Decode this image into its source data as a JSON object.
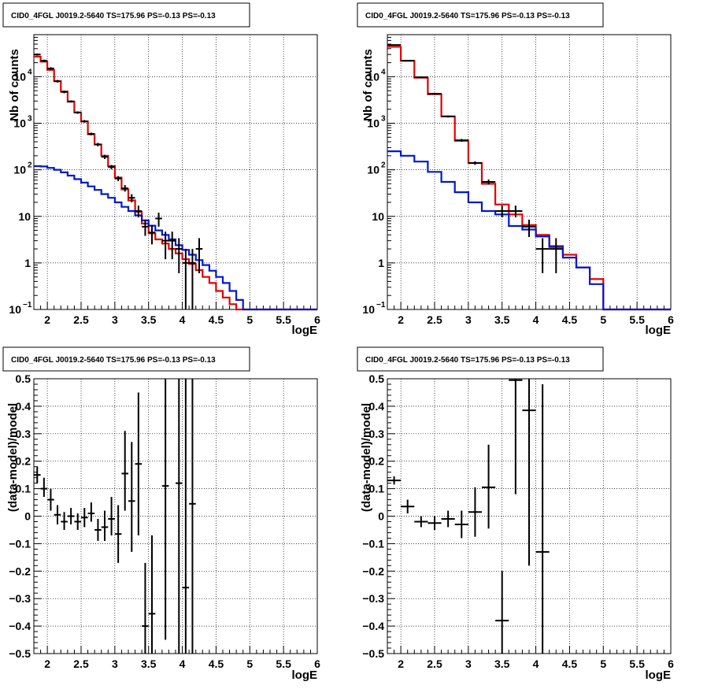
{
  "chart_data": [
    {
      "type": "line",
      "title": "CID0_4FGL J0019.2-5640 TS=175.96 PS=-0.13 PS=-0.13",
      "xlabel": "logE",
      "ylabel": "Nb of counts",
      "xlim": [
        1.8,
        6.0
      ],
      "ylim": [
        0.1,
        80000
      ],
      "yscale": "log",
      "grid": true,
      "xticks": [
        "2",
        "2.5",
        "3",
        "3.5",
        "4",
        "4.5",
        "5",
        "5.5",
        "6"
      ],
      "yticks": [
        {
          "v": 0.1,
          "label": "10",
          "exp": "−1"
        },
        {
          "v": 1,
          "label": "1",
          "exp": ""
        },
        {
          "v": 10,
          "label": "10",
          "exp": ""
        },
        {
          "v": 100,
          "label": "10",
          "exp": "2"
        },
        {
          "v": 1000,
          "label": "10",
          "exp": "3"
        },
        {
          "v": 10000,
          "label": "10",
          "exp": "4"
        }
      ],
      "bin_edges": [
        1.8,
        1.9,
        2.0,
        2.1,
        2.2,
        2.3,
        2.4,
        2.5,
        2.6,
        2.7,
        2.8,
        2.9,
        3.0,
        3.1,
        3.2,
        3.3,
        3.4,
        3.5,
        3.6,
        3.7,
        3.8,
        3.9,
        4.0,
        4.1,
        4.2,
        4.3,
        4.4,
        4.5,
        4.6,
        4.7,
        4.8,
        4.9,
        5.0,
        5.1,
        5.2,
        5.3,
        5.4,
        5.5,
        5.6,
        5.7,
        5.8,
        5.9,
        6.0
      ],
      "series": [
        {
          "color": "#e00000",
          "style": "step",
          "values": [
            27000,
            21000,
            14000,
            8000,
            4800,
            2900,
            1700,
            1100,
            580,
            350,
            200,
            120,
            68,
            38,
            22,
            12.5,
            7,
            4.3,
            3.2,
            2.6,
            2.0,
            1.6,
            1.2,
            0.95,
            0.7,
            0.5,
            0.37,
            0.25,
            0.18,
            0.13,
            0.1,
            0.1,
            0.1,
            0.1,
            0.1,
            0.1,
            0.1,
            0.1,
            0.1,
            0.1,
            0.1,
            0.1
          ]
        },
        {
          "color": "#0018d0",
          "style": "step",
          "values": [
            120,
            118,
            110,
            100,
            88,
            75,
            63,
            53,
            44,
            37,
            30,
            25,
            20,
            16,
            13,
            10.5,
            8.2,
            6.3,
            5,
            4,
            3.2,
            2.4,
            1.9,
            1.5,
            1.15,
            0.9,
            0.68,
            0.5,
            0.37,
            0.25,
            0.16,
            0.1,
            0.1,
            0.1,
            0.1,
            0.1,
            0.1,
            0.1,
            0.1,
            0.1,
            0.1,
            0.1
          ]
        },
        {
          "color": "#000000",
          "style": "errorbar",
          "points": [
            {
              "x": 1.85,
              "y": 30000,
              "lo": 28500,
              "hi": 31500
            },
            {
              "x": 1.95,
              "y": 22000,
              "lo": 20800,
              "hi": 23200
            },
            {
              "x": 2.05,
              "y": 15000,
              "lo": 14000,
              "hi": 16000
            },
            {
              "x": 2.15,
              "y": 8000,
              "lo": 7500,
              "hi": 8500
            },
            {
              "x": 2.25,
              "y": 4700,
              "lo": 4400,
              "hi": 5000
            },
            {
              "x": 2.35,
              "y": 2950,
              "lo": 2800,
              "hi": 3100
            },
            {
              "x": 2.45,
              "y": 1700,
              "lo": 1600,
              "hi": 1800
            },
            {
              "x": 2.55,
              "y": 1100,
              "lo": 1030,
              "hi": 1170
            },
            {
              "x": 2.65,
              "y": 590,
              "lo": 550,
              "hi": 630
            },
            {
              "x": 2.75,
              "y": 350,
              "lo": 320,
              "hi": 380
            },
            {
              "x": 2.85,
              "y": 190,
              "lo": 170,
              "hi": 210
            },
            {
              "x": 2.95,
              "y": 115,
              "lo": 103,
              "hi": 127
            },
            {
              "x": 3.05,
              "y": 65,
              "lo": 57,
              "hi": 73
            },
            {
              "x": 3.15,
              "y": 40,
              "lo": 34,
              "hi": 47
            },
            {
              "x": 3.25,
              "y": 25,
              "lo": 20,
              "hi": 30
            },
            {
              "x": 3.35,
              "y": 13,
              "lo": 9.5,
              "hi": 17
            },
            {
              "x": 3.45,
              "y": 6,
              "lo": 3.8,
              "hi": 8.5
            },
            {
              "x": 3.55,
              "y": 4.5,
              "lo": 2.5,
              "hi": 6.5
            },
            {
              "x": 3.65,
              "y": 9,
              "lo": 6,
              "hi": 12
            },
            {
              "x": 3.75,
              "y": 3,
              "lo": 1.2,
              "hi": 4.7
            },
            {
              "x": 3.85,
              "y": 3,
              "lo": 1.2,
              "hi": 4.7
            },
            {
              "x": 3.95,
              "y": 2,
              "lo": 0.6,
              "hi": 3.4
            },
            {
              "x": 4.05,
              "y": 1,
              "lo": 0.1,
              "hi": 2
            },
            {
              "x": 4.15,
              "y": 1,
              "lo": 0.1,
              "hi": 2
            },
            {
              "x": 4.25,
              "y": 2,
              "lo": 0.6,
              "hi": 3.4
            }
          ]
        }
      ]
    },
    {
      "type": "line",
      "title": "CID0_4FGL J0019.2-5640 TS=175.96 PS=-0.13 PS=-0.13",
      "xlabel": "logE",
      "ylabel": "Nb of counts",
      "xlim": [
        1.8,
        6.0
      ],
      "ylim": [
        0.1,
        80000
      ],
      "yscale": "log",
      "grid": true,
      "xticks": [
        "2",
        "2.5",
        "3",
        "3.5",
        "4",
        "4.5",
        "5",
        "5.5",
        "6"
      ],
      "yticks": [
        {
          "v": 0.1,
          "label": "10",
          "exp": "−1"
        },
        {
          "v": 1,
          "label": "1",
          "exp": ""
        },
        {
          "v": 10,
          "label": "10",
          "exp": ""
        },
        {
          "v": 100,
          "label": "10",
          "exp": "2"
        },
        {
          "v": 1000,
          "label": "10",
          "exp": "3"
        },
        {
          "v": 10000,
          "label": "10",
          "exp": "4"
        }
      ],
      "bin_edges": [
        1.8,
        2.0,
        2.2,
        2.4,
        2.6,
        2.8,
        3.0,
        3.2,
        3.4,
        3.6,
        3.8,
        4.0,
        4.2,
        4.4,
        4.6,
        4.8,
        5.0,
        5.2,
        5.4,
        5.6,
        5.8,
        6.0
      ],
      "series": [
        {
          "color": "#e00000",
          "style": "step",
          "values": [
            44000,
            22000,
            9500,
            4200,
            1400,
            420,
            140,
            50,
            18,
            11,
            6.5,
            4,
            2.3,
            1.5,
            0.8,
            0.45,
            0.1,
            0.1,
            0.1,
            0.1,
            0.1
          ]
        },
        {
          "color": "#0018d0",
          "style": "step",
          "values": [
            250,
            200,
            150,
            90,
            55,
            33,
            20,
            13,
            11,
            6.2,
            5.2,
            3.7,
            2.2,
            1.3,
            0.8,
            0.35,
            0.1,
            0.1,
            0.1,
            0.1,
            0.1
          ]
        },
        {
          "color": "#000000",
          "style": "errorbar",
          "points": [
            {
              "x": 1.9,
              "y": 48000,
              "lo": 47000,
              "hi": 49000
            },
            {
              "x": 2.1,
              "y": 22000,
              "lo": 21300,
              "hi": 22700
            },
            {
              "x": 2.3,
              "y": 9700,
              "lo": 9300,
              "hi": 10100
            },
            {
              "x": 2.5,
              "y": 4300,
              "lo": 4100,
              "hi": 4500
            },
            {
              "x": 2.7,
              "y": 1400,
              "lo": 1330,
              "hi": 1470
            },
            {
              "x": 2.9,
              "y": 430,
              "lo": 400,
              "hi": 460
            },
            {
              "x": 3.1,
              "y": 140,
              "lo": 128,
              "hi": 152
            },
            {
              "x": 3.3,
              "y": 55,
              "lo": 48,
              "hi": 62
            },
            {
              "x": 3.5,
              "y": 13,
              "lo": 9.5,
              "hi": 17
            },
            {
              "x": 3.7,
              "y": 13,
              "lo": 9.5,
              "hi": 17
            },
            {
              "x": 3.9,
              "y": 6,
              "lo": 3.6,
              "hi": 8.5
            },
            {
              "x": 4.1,
              "y": 2,
              "lo": 0.6,
              "hi": 3.4
            },
            {
              "x": 4.3,
              "y": 2,
              "lo": 0.6,
              "hi": 3.4
            }
          ]
        }
      ]
    },
    {
      "type": "scatter",
      "title": "CID0_4FGL J0019.2-5640 TS=175.96 PS=-0.13 PS=-0.13",
      "xlabel": "logE",
      "ylabel": "(data-model)/model",
      "xlim": [
        1.8,
        6.0
      ],
      "ylim": [
        -0.5,
        0.5
      ],
      "yscale": "linear",
      "grid": true,
      "xticks": [
        "2",
        "2.5",
        "3",
        "3.5",
        "4",
        "4.5",
        "5",
        "5.5",
        "6"
      ],
      "yticks": [
        "−0.5",
        "−0.4",
        "−0.3",
        "−0.2",
        "−0.1",
        "0",
        "0.1",
        "0.2",
        "0.3",
        "0.4",
        "0.5"
      ],
      "series": [
        {
          "color": "#000000",
          "style": "errorbar",
          "halfwidth": 0.05,
          "points": [
            {
              "x": 1.85,
              "y": 0.15,
              "lo": 0.12,
              "hi": 0.18
            },
            {
              "x": 1.95,
              "y": 0.1,
              "lo": 0.07,
              "hi": 0.14
            },
            {
              "x": 2.05,
              "y": 0.06,
              "lo": 0.02,
              "hi": 0.1
            },
            {
              "x": 2.15,
              "y": 0.005,
              "lo": -0.03,
              "hi": 0.04
            },
            {
              "x": 2.25,
              "y": -0.02,
              "lo": -0.05,
              "hi": 0.015
            },
            {
              "x": 2.35,
              "y": 0.0,
              "lo": -0.03,
              "hi": 0.03
            },
            {
              "x": 2.45,
              "y": -0.02,
              "lo": -0.05,
              "hi": 0.01
            },
            {
              "x": 2.55,
              "y": -0.005,
              "lo": -0.04,
              "hi": 0.03
            },
            {
              "x": 2.65,
              "y": 0.01,
              "lo": -0.02,
              "hi": 0.05
            },
            {
              "x": 2.75,
              "y": -0.05,
              "lo": -0.09,
              "hi": -0.01
            },
            {
              "x": 2.85,
              "y": -0.04,
              "lo": -0.09,
              "hi": 0.02
            },
            {
              "x": 2.95,
              "y": -0.01,
              "lo": -0.07,
              "hi": 0.07
            },
            {
              "x": 3.05,
              "y": -0.065,
              "lo": -0.17,
              "hi": 0.04
            },
            {
              "x": 3.15,
              "y": 0.155,
              "lo": 0.02,
              "hi": 0.31
            },
            {
              "x": 3.25,
              "y": 0.055,
              "lo": -0.13,
              "hi": 0.27
            },
            {
              "x": 3.35,
              "y": 0.19,
              "lo": -0.07,
              "hi": 0.45
            },
            {
              "x": 3.45,
              "y": -0.4,
              "lo": -0.5,
              "hi": -0.17
            },
            {
              "x": 3.55,
              "y": -0.355,
              "lo": -0.5,
              "hi": -0.07
            },
            {
              "x": 3.75,
              "y": 0.11,
              "lo": -0.45,
              "hi": 0.5
            },
            {
              "x": 3.95,
              "y": 0.12,
              "lo": -0.5,
              "hi": 0.5
            },
            {
              "x": 4.05,
              "y": -0.26,
              "lo": -0.5,
              "hi": 0.5
            },
            {
              "x": 4.15,
              "y": 0.045,
              "lo": -0.5,
              "hi": 0.5
            }
          ]
        }
      ]
    },
    {
      "type": "scatter",
      "title": "CID0_4FGL J0019.2-5640 TS=175.96 PS=-0.13 PS=-0.13",
      "xlabel": "logE",
      "ylabel": "(data-model)/model",
      "xlim": [
        1.8,
        6.0
      ],
      "ylim": [
        -0.5,
        0.5
      ],
      "yscale": "linear",
      "grid": true,
      "xticks": [
        "2",
        "2.5",
        "3",
        "3.5",
        "4",
        "4.5",
        "5",
        "5.5",
        "6"
      ],
      "yticks": [
        "−0.5",
        "−0.4",
        "−0.3",
        "−0.2",
        "−0.1",
        "0",
        "0.1",
        "0.2",
        "0.3",
        "0.4",
        "0.5"
      ],
      "series": [
        {
          "color": "#000000",
          "style": "errorbar",
          "halfwidth": 0.1,
          "points": [
            {
              "x": 1.9,
              "y": 0.13,
              "lo": 0.115,
              "hi": 0.145
            },
            {
              "x": 2.1,
              "y": 0.035,
              "lo": 0.01,
              "hi": 0.06
            },
            {
              "x": 2.3,
              "y": -0.02,
              "lo": -0.04,
              "hi": 0.0
            },
            {
              "x": 2.5,
              "y": -0.025,
              "lo": -0.05,
              "hi": 0.0
            },
            {
              "x": 2.7,
              "y": -0.01,
              "lo": -0.04,
              "hi": 0.02
            },
            {
              "x": 2.9,
              "y": -0.03,
              "lo": -0.08,
              "hi": 0.02
            },
            {
              "x": 3.1,
              "y": 0.015,
              "lo": -0.075,
              "hi": 0.105
            },
            {
              "x": 3.3,
              "y": 0.105,
              "lo": -0.045,
              "hi": 0.26
            },
            {
              "x": 3.5,
              "y": -0.38,
              "lo": -0.5,
              "hi": -0.2
            },
            {
              "x": 3.7,
              "y": 0.495,
              "lo": 0.08,
              "hi": 0.5
            },
            {
              "x": 3.9,
              "y": 0.385,
              "lo": -0.18,
              "hi": 0.5
            },
            {
              "x": 4.1,
              "y": -0.13,
              "lo": -0.5,
              "hi": 0.48
            }
          ]
        }
      ]
    }
  ]
}
